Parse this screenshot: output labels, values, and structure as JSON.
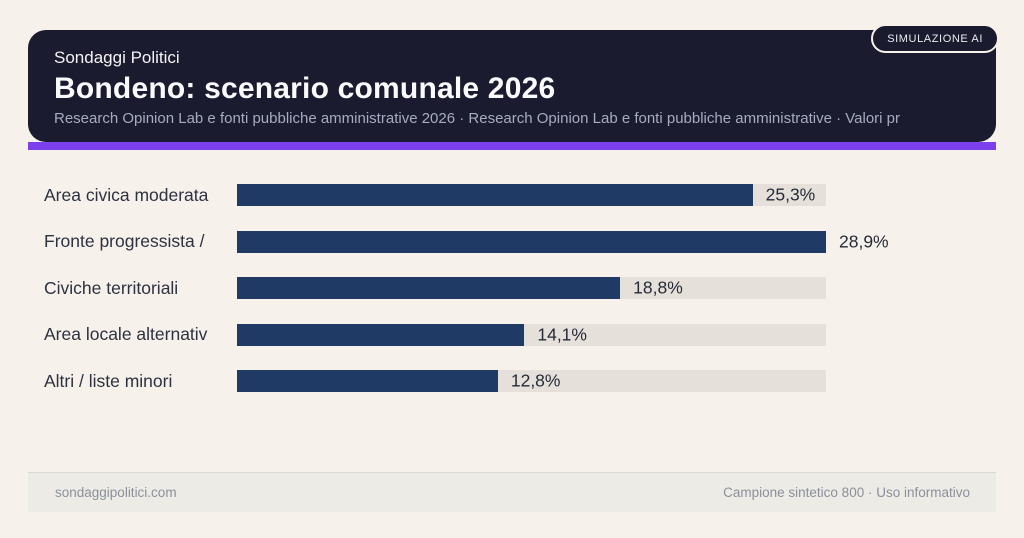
{
  "page": {
    "background": "#f6f1ea"
  },
  "header": {
    "kicker": "Sondaggi Politici",
    "title": "Bondeno: scenario comunale 2026",
    "subtitle": "Research Opinion Lab e fonti pubbliche amministrative 2026 · Research Opinion Lab e fonti pubbliche amministrative · Valori pr",
    "badge": "SIMULAZIONE AI",
    "background": "#1a1b2e",
    "accent_color": "#7c3fec"
  },
  "chart_data": {
    "type": "bar",
    "orientation": "horizontal",
    "title": "Bondeno: scenario comunale 2026",
    "categories": [
      "Area civica moderata",
      "Fronte progressista /",
      "Civiche territoriali",
      "Area locale alternativ",
      "Altri / liste minori"
    ],
    "values": [
      25.3,
      28.9,
      18.8,
      14.1,
      12.8
    ],
    "value_labels": [
      "25,3%",
      "28,9%",
      "18,8%",
      "14,1%",
      "12,8%"
    ],
    "max_value": 28.9,
    "bar_color": "#1f3a64",
    "track_color": "#e5e1da",
    "value_format": "italian-decimal-percent",
    "grid": false,
    "legend": false
  },
  "footer": {
    "left": "sondaggipolitici.com",
    "right": "Campione sintetico 800 · Uso informativo"
  }
}
